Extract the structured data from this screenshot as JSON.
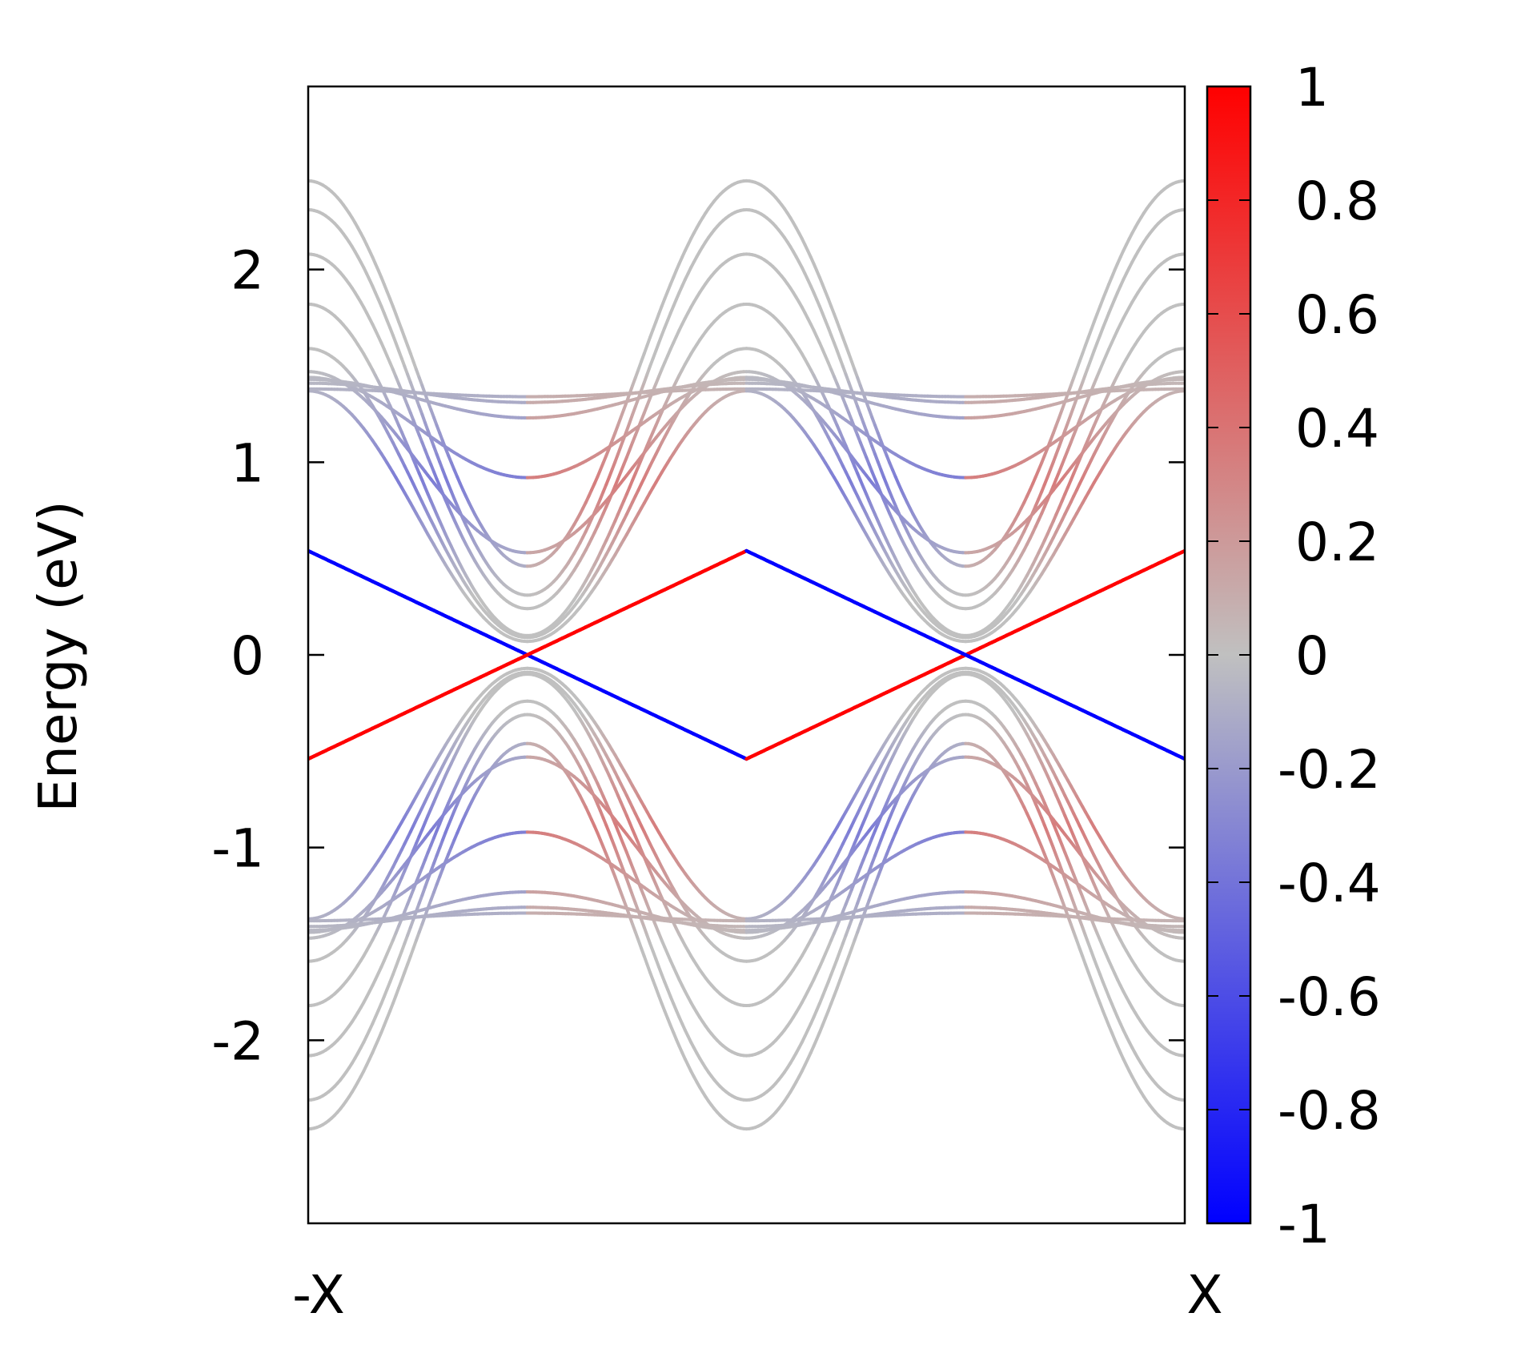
{
  "chart_data": {
    "type": "line",
    "title": "",
    "xlabel": "",
    "ylabel": "Energy (eV)",
    "x_tick_labels": [
      "-X",
      "X"
    ],
    "y_ticks": [
      -2,
      -1,
      0,
      1,
      2
    ],
    "y_tick_labels": [
      "-2",
      "-1",
      "0",
      "1",
      "2"
    ],
    "ylim": [
      -2.95,
      2.95
    ],
    "grid": false,
    "legend": "none",
    "colorbar": {
      "range": [
        -1,
        1
      ],
      "ticks": [
        1,
        0.8,
        0.6,
        0.4,
        0.2,
        0,
        -0.2,
        -0.4,
        -0.6,
        -0.8,
        -1
      ],
      "tick_labels": [
        "1",
        "0.8",
        "0.6",
        "0.4",
        "0.2",
        "0",
        "-0.2",
        "-0.4",
        "-0.6",
        "-0.8",
        "-1"
      ],
      "colors": {
        "low": "#0000ff",
        "mid": "#c0c0c0",
        "high": "#ff0000"
      }
    },
    "x_range": [
      -1,
      1
    ],
    "series": [
      {
        "type": "dirac",
        "values_x": [
          -1,
          -0.5,
          0,
          0.5,
          1
        ],
        "values_y": [
          0.54,
          0.0,
          -0.54,
          0.0,
          0.54
        ]
      },
      {
        "type": "dirac",
        "values_x": [
          -1,
          -0.5,
          0,
          0.5,
          1
        ],
        "values_y": [
          -0.54,
          0.0,
          0.54,
          0.0,
          -0.54
        ]
      },
      {
        "type": "cosine",
        "center": 1.46,
        "amplitude": 1.0
      },
      {
        "type": "cosine",
        "center": 1.31,
        "amplitude": 1.0
      },
      {
        "type": "cosine",
        "center": 1.16,
        "amplitude": 0.92
      },
      {
        "type": "cosine",
        "center": 0.96,
        "amplitude": 0.86
      },
      {
        "type": "cosine",
        "center": 0.84,
        "amplitude": 0.75
      },
      {
        "type": "cosine",
        "center": 0.72,
        "amplitude": 0.65
      },
      {
        "type": "cosine",
        "center": 1.0,
        "amplitude": 0.47
      },
      {
        "type": "cosine",
        "center": 1.18,
        "amplitude": 0.26
      },
      {
        "type": "cosine",
        "center": 1.33,
        "amplitude": 0.1
      },
      {
        "type": "cosine",
        "center": 1.36,
        "amplitude": 0.05
      },
      {
        "type": "cosine",
        "center": 1.36,
        "amplitude": 0.02
      },
      {
        "type": "cosine",
        "center": -1.46,
        "amplitude": -1.0
      },
      {
        "type": "cosine",
        "center": -1.31,
        "amplitude": -1.0
      },
      {
        "type": "cosine",
        "center": -1.16,
        "amplitude": -0.92
      },
      {
        "type": "cosine",
        "center": -0.96,
        "amplitude": -0.86
      },
      {
        "type": "cosine",
        "center": -0.84,
        "amplitude": -0.75
      },
      {
        "type": "cosine",
        "center": -0.72,
        "amplitude": -0.65
      },
      {
        "type": "cosine",
        "center": -1.0,
        "amplitude": -0.47
      },
      {
        "type": "cosine",
        "center": -1.18,
        "amplitude": -0.26
      },
      {
        "type": "cosine",
        "center": -1.33,
        "amplitude": -0.1
      },
      {
        "type": "cosine",
        "center": -1.36,
        "amplitude": -0.05
      },
      {
        "type": "cosine",
        "center": -1.36,
        "amplitude": -0.02
      }
    ]
  }
}
